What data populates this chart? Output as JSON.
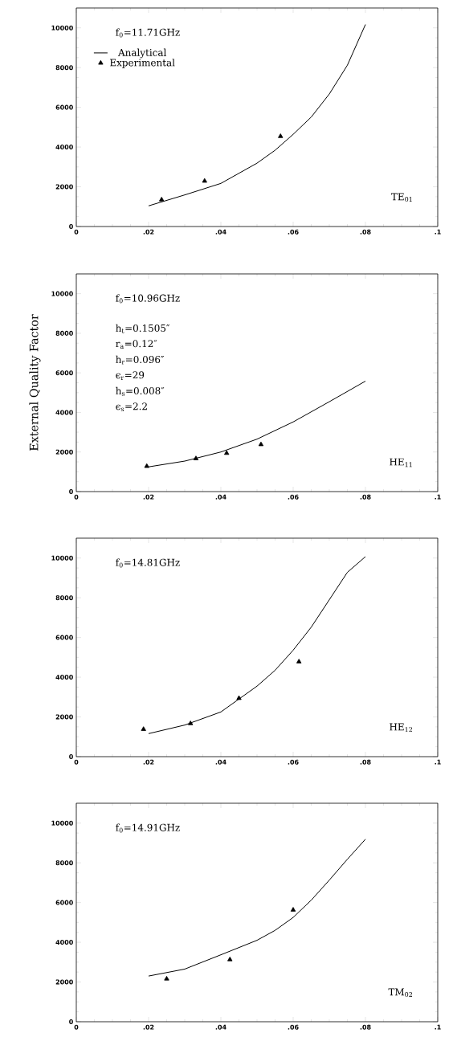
{
  "chart_data": [
    {
      "type": "line",
      "xlim": [
        0,
        0.1
      ],
      "ylim": [
        0,
        11000
      ],
      "xticks": [
        0,
        {
          "value": 0.02,
          "label": ".02"
        },
        {
          "value": 0.04,
          "label": ".04"
        },
        {
          "value": 0.06,
          "label": ".06"
        },
        {
          "value": 0.08,
          "label": ".08"
        },
        {
          "value": 0.1,
          "label": ".1"
        }
      ],
      "yticks": [
        0,
        2000,
        4000,
        6000,
        8000,
        10000
      ],
      "grid": false,
      "legend": "top left",
      "annotations": [
        "f$_{0}$=11.71GHz",
        "TE$_{01}$"
      ],
      "series": [
        {
          "name": "Analytical",
          "color": "#000000",
          "marker": "none",
          "line_style": "solid",
          "x": [
            0.02,
            0.03,
            0.04,
            0.05,
            0.055,
            0.06,
            0.065,
            0.07,
            0.075,
            0.08
          ],
          "values": [
            1040,
            1590,
            2170,
            3190,
            3840,
            4640,
            5510,
            6670,
            8120,
            10170
          ]
        },
        {
          "name": "Experimental",
          "type": "scatter",
          "color": "#000000",
          "marker": "triangle",
          "x": [
            0.0236,
            0.0355,
            0.0565
          ],
          "values": [
            1350,
            2290,
            4540
          ]
        }
      ]
    },
    {
      "type": "line",
      "xlim": [
        0,
        0.1
      ],
      "ylim": [
        0,
        11000
      ],
      "xticks": [
        0,
        {
          "value": 0.02,
          "label": ".02"
        },
        {
          "value": 0.04,
          "label": ".04"
        },
        {
          "value": 0.06,
          "label": ".06"
        },
        {
          "value": 0.08,
          "label": ".08"
        },
        {
          "value": 0.1,
          "label": ".1"
        }
      ],
      "yticks": [
        0,
        2000,
        4000,
        6000,
        8000,
        10000
      ],
      "grid": false,
      "ylabel": "External Quality Factor",
      "annotations": [
        "f$_{0}$=10.96GHz",
        "h$_{t}$=0.1505″",
        "r$_{a}$=0.12″",
        "h$_{r}$=0.096″",
        "ϵ$_{r}$=29",
        "h$_{s}$=0.008″",
        "ϵ$_{s}$=2.2",
        "HE$_{11}$"
      ],
      "series": [
        {
          "color": "#000000",
          "marker": "none",
          "line_style": "solid",
          "x": [
            0.02,
            0.03,
            0.04,
            0.05,
            0.06,
            0.07,
            0.08
          ],
          "values": [
            1250,
            1540,
            2000,
            2650,
            3520,
            4540,
            5580
          ]
        },
        {
          "type": "scatter",
          "color": "#000000",
          "marker": "triangle",
          "x": [
            0.0195,
            0.0331,
            0.0416,
            0.0511
          ],
          "values": [
            1280,
            1670,
            1940,
            2380
          ]
        }
      ]
    },
    {
      "type": "line",
      "xlim": [
        0,
        0.1
      ],
      "ylim": [
        0,
        11000
      ],
      "xticks": [
        0,
        {
          "value": 0.02,
          "label": ".02"
        },
        {
          "value": 0.04,
          "label": ".04"
        },
        {
          "value": 0.06,
          "label": ".06"
        },
        {
          "value": 0.08,
          "label": ".08"
        },
        {
          "value": 0.1,
          "label": ".1"
        }
      ],
      "yticks": [
        0,
        2000,
        4000,
        6000,
        8000,
        10000
      ],
      "grid": false,
      "annotations": [
        "f$_{0}$=14.81GHz",
        "HE$_{12}$"
      ],
      "series": [
        {
          "color": "#000000",
          "marker": "none",
          "line_style": "solid",
          "x": [
            0.02,
            0.03,
            0.04,
            0.045,
            0.05,
            0.055,
            0.06,
            0.065,
            0.07,
            0.075,
            0.08
          ],
          "values": [
            1160,
            1590,
            2250,
            2900,
            3550,
            4350,
            5360,
            6520,
            7900,
            9280,
            10070
          ]
        },
        {
          "type": "scatter",
          "color": "#000000",
          "marker": "triangle",
          "x": [
            0.0186,
            0.0316,
            0.045,
            0.0616
          ],
          "values": [
            1380,
            1670,
            2940,
            4780
          ]
        }
      ]
    },
    {
      "type": "line",
      "xlim": [
        0,
        0.1
      ],
      "ylim": [
        0,
        11000
      ],
      "xticks": [
        0,
        {
          "value": 0.02,
          "label": ".02"
        },
        {
          "value": 0.04,
          "label": ".04"
        },
        {
          "value": 0.06,
          "label": ".06"
        },
        {
          "value": 0.08,
          "label": ".08"
        },
        {
          "value": 0.1,
          "label": ".1"
        }
      ],
      "yticks": [
        0,
        2000,
        4000,
        6000,
        8000,
        10000
      ],
      "grid": false,
      "annotations": [
        "f$_{0}$=14.91GHz",
        "TM$_{02}$"
      ],
      "series": [
        {
          "color": "#000000",
          "marker": "none",
          "line_style": "solid",
          "x": [
            0.02,
            0.03,
            0.04,
            0.05,
            0.055,
            0.06,
            0.065,
            0.07,
            0.075,
            0.08
          ],
          "values": [
            2300,
            2650,
            3370,
            4100,
            4600,
            5250,
            6120,
            7130,
            8180,
            9190
          ]
        },
        {
          "type": "scatter",
          "color": "#000000",
          "marker": "triangle",
          "x": [
            0.025,
            0.0425,
            0.06
          ],
          "values": [
            2160,
            3130,
            5630
          ]
        }
      ]
    }
  ]
}
